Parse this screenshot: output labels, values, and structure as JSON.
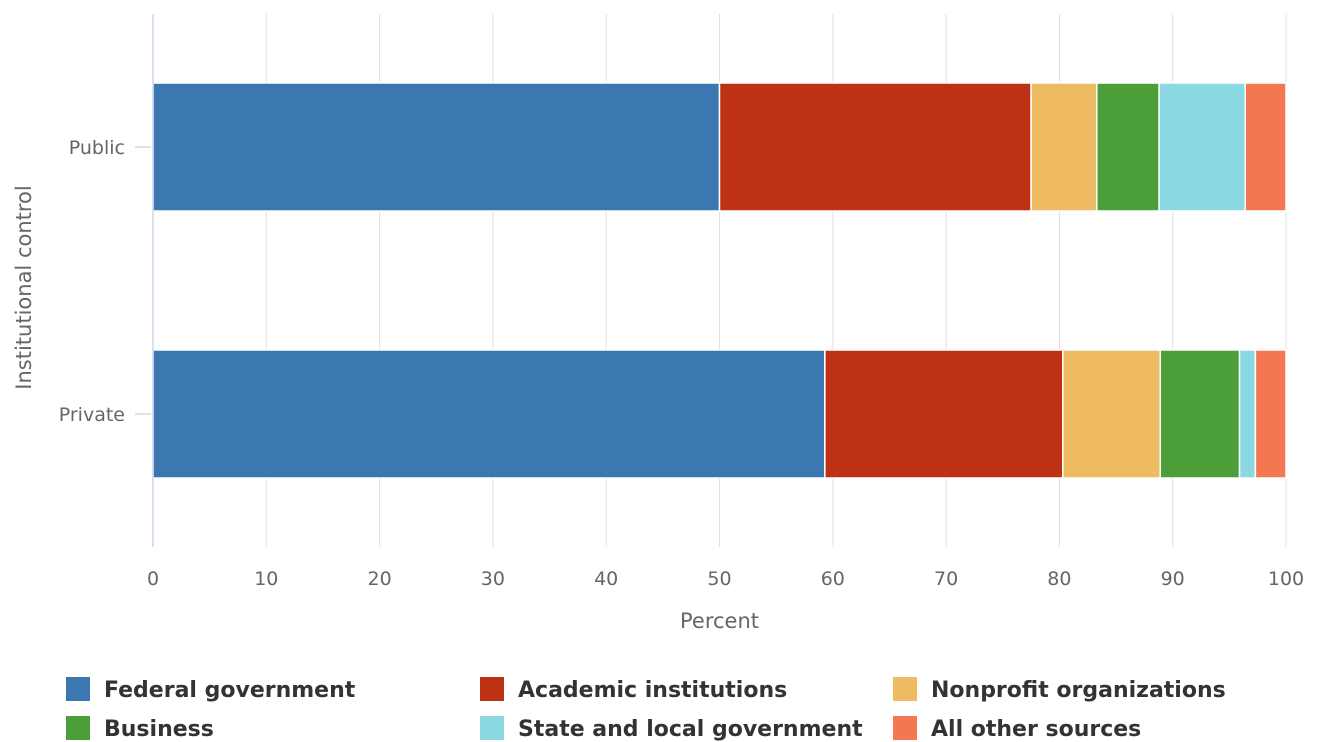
{
  "chart_data": {
    "type": "bar",
    "orientation": "horizontal",
    "stacked": true,
    "categories": [
      "Public",
      "Private"
    ],
    "xlabel": "Percent",
    "ylabel": "Institutional control",
    "xlim": [
      0,
      100
    ],
    "xticks": [
      "0",
      "10",
      "20",
      "30",
      "40",
      "50",
      "60",
      "70",
      "80",
      "90",
      "100"
    ],
    "grid": true,
    "legend_position": "bottom",
    "series": [
      {
        "name": "Federal government",
        "color": "#3b77b0",
        "values": [
          50.0,
          59.3
        ]
      },
      {
        "name": "Academic institutions",
        "color": "#bd3214",
        "values": [
          27.5,
          21.0
        ]
      },
      {
        "name": "Nonprofit organizations",
        "color": "#efbb62",
        "values": [
          5.8,
          8.6
        ]
      },
      {
        "name": "Business",
        "color": "#4c9e39",
        "values": [
          5.5,
          7.0
        ]
      },
      {
        "name": "State and local government",
        "color": "#8ad8e2",
        "values": [
          7.6,
          1.4
        ]
      },
      {
        "name": "All other sources",
        "color": "#f47751",
        "values": [
          3.6,
          2.7
        ]
      }
    ]
  }
}
